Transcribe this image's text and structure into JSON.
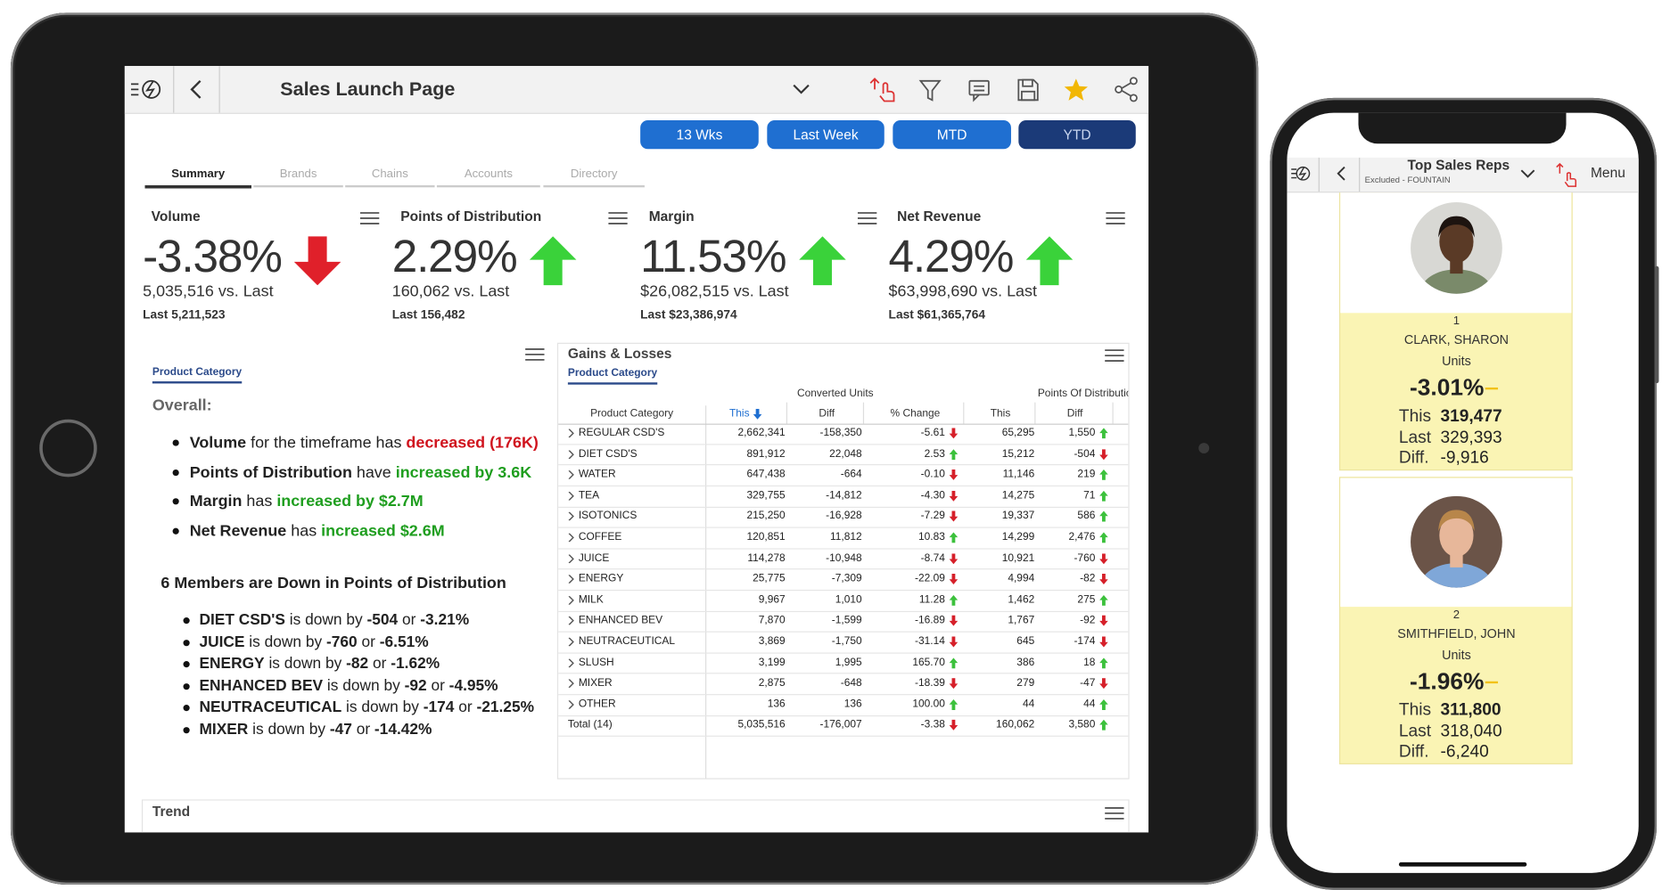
{
  "tablet": {
    "header": {
      "title": "Sales Launch Page"
    },
    "periods": [
      "13 Wks",
      "Last Week",
      "MTD",
      "YTD"
    ],
    "active_period": 3,
    "tabs": [
      "Summary",
      "Brands",
      "Chains",
      "Accounts",
      "Directory"
    ],
    "kpis": [
      {
        "label": "Volume",
        "value": "-3.38%",
        "direction": "down",
        "vs": "5,035,516 vs. Last",
        "last": "Last 5,211,523"
      },
      {
        "label": "Points of Distribution",
        "value": "2.29%",
        "direction": "up",
        "vs": "160,062 vs. Last",
        "last": "Last 156,482"
      },
      {
        "label": "Margin",
        "value": "11.53%",
        "direction": "up",
        "vs": "$26,082,515 vs. Last",
        "last": "Last $23,386,974"
      },
      {
        "label": "Net Revenue",
        "value": "4.29%",
        "direction": "up",
        "vs": "$63,998,690 vs. Last",
        "last": "Last $61,365,764"
      }
    ],
    "summary": {
      "filter": "Product Category",
      "overall": "Overall:",
      "bullets": [
        [
          {
            "text": "Volume",
            "style": "bold"
          },
          {
            "text": " for the timeframe has "
          },
          {
            "text": "decreased (176K)",
            "style": "down"
          }
        ],
        [
          {
            "text": "Points of Distribution",
            "style": "bold"
          },
          {
            "text": " have "
          },
          {
            "text": "increased by 3.6K",
            "style": "up"
          }
        ],
        [
          {
            "text": "Margin",
            "style": "bold"
          },
          {
            "text": " has "
          },
          {
            "text": "increased by $2.7M",
            "style": "up"
          }
        ],
        [
          {
            "text": "Net Revenue",
            "style": "bold"
          },
          {
            "text": " has "
          },
          {
            "text": "increased $2.6M",
            "style": "up"
          }
        ]
      ],
      "members_heading": "6 Members are Down in Points of Distribution",
      "members": [
        [
          {
            "text": "DIET CSD'S",
            "style": "bold"
          },
          {
            "text": " is down by "
          },
          {
            "text": "-504",
            "style": "bold"
          },
          {
            "text": " or "
          },
          {
            "text": "-3.21%",
            "style": "bold"
          }
        ],
        [
          {
            "text": "JUICE",
            "style": "bold"
          },
          {
            "text": " is down by "
          },
          {
            "text": "-760",
            "style": "bold"
          },
          {
            "text": " or "
          },
          {
            "text": "-6.51%",
            "style": "bold"
          }
        ],
        [
          {
            "text": "ENERGY",
            "style": "bold"
          },
          {
            "text": " is down by "
          },
          {
            "text": "-82",
            "style": "bold"
          },
          {
            "text": " or "
          },
          {
            "text": "-1.62%",
            "style": "bold"
          }
        ],
        [
          {
            "text": "ENHANCED BEV",
            "style": "bold"
          },
          {
            "text": " is down by "
          },
          {
            "text": "-92",
            "style": "bold"
          },
          {
            "text": " or "
          },
          {
            "text": "-4.95%",
            "style": "bold"
          }
        ],
        [
          {
            "text": "NEUTRACEUTICAL",
            "style": "bold"
          },
          {
            "text": " is down by "
          },
          {
            "text": "-174",
            "style": "bold"
          },
          {
            "text": " or "
          },
          {
            "text": "-21.25%",
            "style": "bold"
          }
        ],
        [
          {
            "text": "MIXER",
            "style": "bold"
          },
          {
            "text": " is down by "
          },
          {
            "text": "-47",
            "style": "bold"
          },
          {
            "text": " or "
          },
          {
            "text": "-14.42%",
            "style": "bold"
          }
        ]
      ]
    },
    "gains_losses": {
      "title": "Gains & Losses",
      "filter": "Product Category",
      "group_headers": [
        "Converted Units",
        "Points Of Distributio"
      ],
      "columns": [
        "Product Category",
        "This",
        "Diff",
        "% Change",
        "This",
        "Diff"
      ],
      "rows": [
        [
          "REGULAR CSD'S",
          "2,662,341",
          "-158,350",
          "-5.61",
          "65,295",
          "1,550"
        ],
        [
          "DIET CSD'S",
          "891,912",
          "22,048",
          "2.53",
          "15,212",
          "-504"
        ],
        [
          "WATER",
          "647,438",
          "-664",
          "-0.10",
          "11,146",
          "219"
        ],
        [
          "TEA",
          "329,755",
          "-14,812",
          "-4.30",
          "14,275",
          "71"
        ],
        [
          "ISOTONICS",
          "215,250",
          "-16,928",
          "-7.29",
          "19,337",
          "586"
        ],
        [
          "COFFEE",
          "120,851",
          "11,812",
          "10.83",
          "14,299",
          "2,476"
        ],
        [
          "JUICE",
          "114,278",
          "-10,948",
          "-8.74",
          "10,921",
          "-760"
        ],
        [
          "ENERGY",
          "25,775",
          "-7,309",
          "-22.09",
          "4,994",
          "-82"
        ],
        [
          "MILK",
          "9,967",
          "1,010",
          "11.28",
          "1,462",
          "275"
        ],
        [
          "ENHANCED BEV",
          "7,870",
          "-1,599",
          "-16.89",
          "1,767",
          "-92"
        ],
        [
          "NEUTRACEUTICAL",
          "3,869",
          "-1,750",
          "-31.14",
          "645",
          "-174"
        ],
        [
          "SLUSH",
          "3,199",
          "1,995",
          "165.70",
          "386",
          "18"
        ],
        [
          "MIXER",
          "2,875",
          "-648",
          "-18.39",
          "279",
          "-47"
        ],
        [
          "OTHER",
          "136",
          "136",
          "100.00",
          "44",
          "44"
        ]
      ],
      "total": [
        "Total (14)",
        "5,035,516",
        "-176,007",
        "-3.38",
        "160,062",
        "3,580"
      ]
    },
    "trend": {
      "title": "Trend"
    }
  },
  "phone": {
    "header": {
      "title": "Top Sales Reps",
      "subtitle": "Excluded - FOUNTAIN",
      "menu": "Menu"
    },
    "reps": [
      {
        "rank": "1",
        "name": "CLARK, SHARON",
        "measure": "Units",
        "change": "-3.01%",
        "this_label": "This",
        "this": "319,477",
        "last_label": "Last",
        "last": "329,393",
        "diff_label": "Diff.",
        "diff": "-9,916"
      },
      {
        "rank": "2",
        "name": "SMITHFIELD, JOHN",
        "measure": "Units",
        "change": "-1.96%",
        "this_label": "This",
        "this": "311,800",
        "last_label": "Last",
        "last": "318,040",
        "diff_label": "Diff.",
        "diff": "-6,240"
      }
    ]
  }
}
